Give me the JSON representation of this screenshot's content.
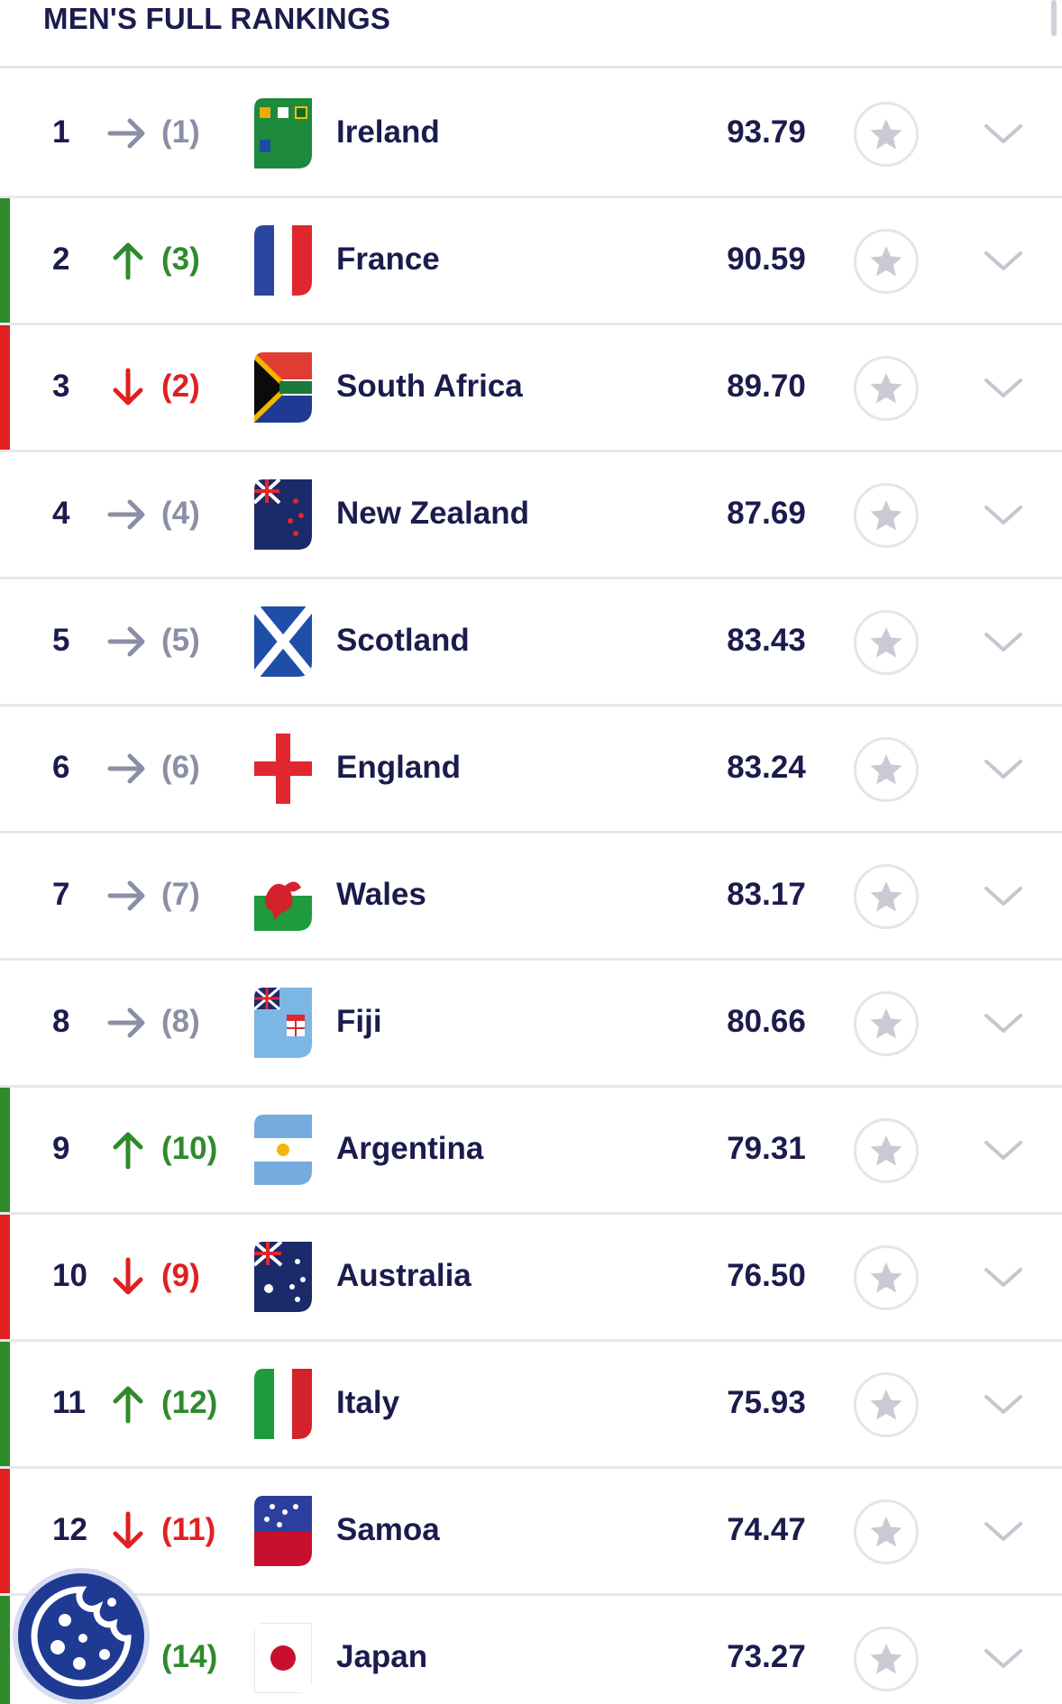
{
  "page": {
    "title": "MEN'S FULL RANKINGS"
  },
  "colors": {
    "up": "#2f8a2c",
    "down": "#e02020",
    "same": "#8b8fa6",
    "text": "#1b1c4d"
  },
  "icons": {
    "movement_up": "arrow-up-icon",
    "movement_down": "arrow-down-icon",
    "movement_same": "arrow-right-icon",
    "favourite": "star-icon",
    "expand": "chevron-down-icon",
    "cookie": "cookie-icon"
  },
  "rankings": [
    {
      "pos": "1",
      "movement": "same",
      "prev": "(1)",
      "team": "Ireland",
      "points": "93.79",
      "flag": "ireland"
    },
    {
      "pos": "2",
      "movement": "up",
      "prev": "(3)",
      "team": "France",
      "points": "90.59",
      "flag": "france"
    },
    {
      "pos": "3",
      "movement": "down",
      "prev": "(2)",
      "team": "South Africa",
      "points": "89.70",
      "flag": "south-africa"
    },
    {
      "pos": "4",
      "movement": "same",
      "prev": "(4)",
      "team": "New Zealand",
      "points": "87.69",
      "flag": "new-zealand"
    },
    {
      "pos": "5",
      "movement": "same",
      "prev": "(5)",
      "team": "Scotland",
      "points": "83.43",
      "flag": "scotland"
    },
    {
      "pos": "6",
      "movement": "same",
      "prev": "(6)",
      "team": "England",
      "points": "83.24",
      "flag": "england"
    },
    {
      "pos": "7",
      "movement": "same",
      "prev": "(7)",
      "team": "Wales",
      "points": "83.17",
      "flag": "wales"
    },
    {
      "pos": "8",
      "movement": "same",
      "prev": "(8)",
      "team": "Fiji",
      "points": "80.66",
      "flag": "fiji"
    },
    {
      "pos": "9",
      "movement": "up",
      "prev": "(10)",
      "team": "Argentina",
      "points": "79.31",
      "flag": "argentina"
    },
    {
      "pos": "10",
      "movement": "down",
      "prev": "(9)",
      "team": "Australia",
      "points": "76.50",
      "flag": "australia"
    },
    {
      "pos": "11",
      "movement": "up",
      "prev": "(12)",
      "team": "Italy",
      "points": "75.93",
      "flag": "italy"
    },
    {
      "pos": "12",
      "movement": "down",
      "prev": "(11)",
      "team": "Samoa",
      "points": "74.47",
      "flag": "samoa"
    },
    {
      "pos": "",
      "movement": "up",
      "prev": "(14)",
      "team": "Japan",
      "points": "73.27",
      "flag": "japan"
    }
  ]
}
